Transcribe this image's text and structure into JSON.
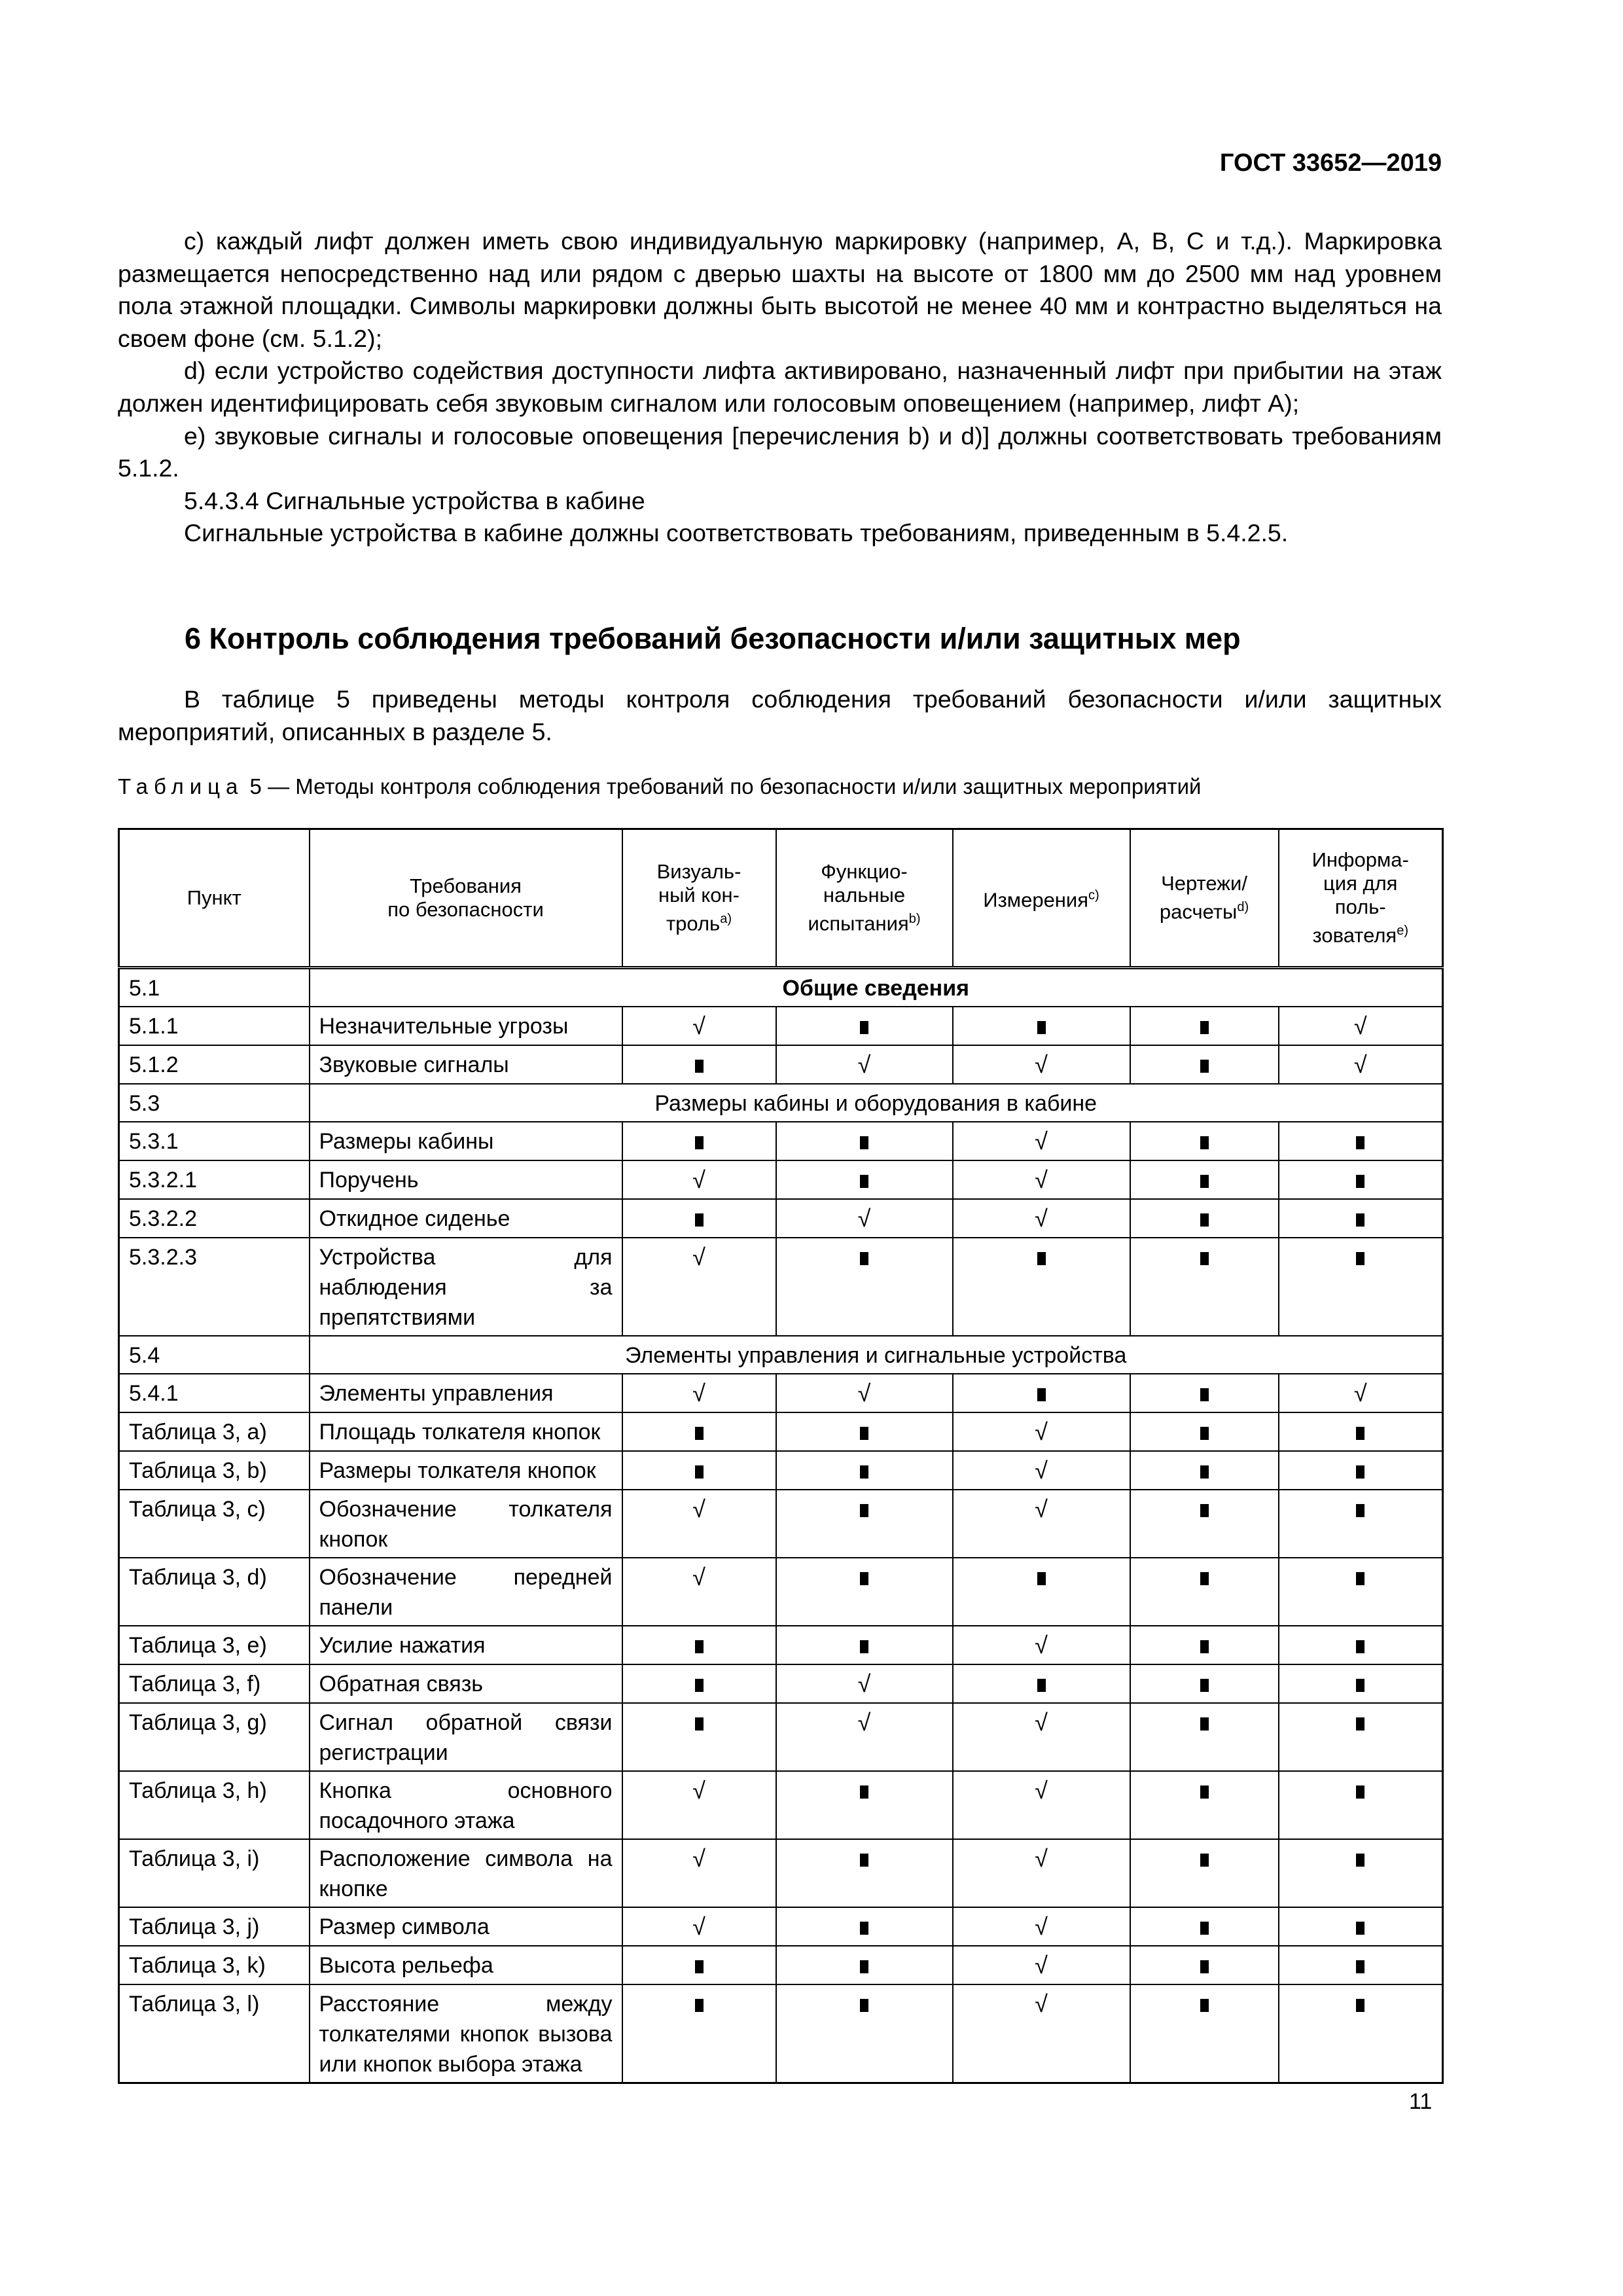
{
  "header": {
    "doc_id": "ГОСТ 33652—2019"
  },
  "paragraphs": [
    "c) каждый лифт должен иметь свою индивидуальную маркировку (например, А, В, С и т.д.). Маркировка размещается непосредственно над или рядом с дверью шахты на высоте от 1800 мм до 2500 мм над уровнем пола этажной площадки. Символы маркировки должны быть высотой не менее 40 мм и контрастно выделяться на своем фоне (см. 5.1.2);",
    "d) если устройство содействия доступности лифта активировано, назначенный лифт при прибытии на этаж должен идентифицировать себя звуковым сигналом или голосовым оповещением (например, лифт А);",
    "e) звуковые сигналы и голосовые оповещения [перечисления b) и d)] должны соответствовать требованиям 5.1.2.",
    "5.4.3.4 Сигнальные устройства в кабине",
    "Сигнальные устройства в кабине должны соответствовать требованиям, приведенным в 5.4.2.5."
  ],
  "section_heading": "6 Контроль соблюдения требований безопасности и/или защитных мер",
  "intro": "В таблице 5 приведены методы контроля соблюдения требований безопасности и/или защитных мероприятий, описанных в разделе 5.",
  "caption": {
    "label": "Таблица",
    "rest": " 5 — Методы контроля соблюдения требований по безопасности и/или защитных мероприятий"
  },
  "table": {
    "headers": [
      {
        "text": "Пункт",
        "sup": ""
      },
      {
        "text": "Требования\nпо безопасности",
        "sup": ""
      },
      {
        "text": "Визуаль-\nный кон-\nтроль",
        "sup": "a)"
      },
      {
        "text": "Функцио-\nнальные\nиспытания",
        "sup": "b)"
      },
      {
        "text": "Измерения",
        "sup": "c)"
      },
      {
        "text": "Чертежи/\nрасчеты",
        "sup": "d)"
      },
      {
        "text": "Информа-\nция для\nполь-\nзователя",
        "sup": "e)"
      }
    ],
    "mark_legend": {
      "check": "√",
      "square": "■"
    },
    "rows": [
      {
        "id": "5.1",
        "section": "Общие сведения",
        "bold": true
      },
      {
        "id": "5.1.1",
        "req": "Незначительные угрозы",
        "marks": [
          "check",
          "square",
          "square",
          "square",
          "check"
        ]
      },
      {
        "id": "5.1.2",
        "req": "Звуковые сигналы",
        "marks": [
          "square",
          "check",
          "check",
          "square",
          "check"
        ]
      },
      {
        "id": "5.3",
        "section": "Размеры кабины и оборудования в кабине",
        "bold": false
      },
      {
        "id": "5.3.1",
        "req": "Размеры кабины",
        "marks": [
          "square",
          "square",
          "check",
          "square",
          "square"
        ]
      },
      {
        "id": "5.3.2.1",
        "req": "Поручень",
        "marks": [
          "check",
          "square",
          "check",
          "square",
          "square"
        ]
      },
      {
        "id": "5.3.2.2",
        "req": "Откидное сиденье",
        "marks": [
          "square",
          "check",
          "check",
          "square",
          "square"
        ]
      },
      {
        "id": "5.3.2.3",
        "req": "Устройства для наблюдения за препятствиями",
        "marks": [
          "check",
          "square",
          "square",
          "square",
          "square"
        ]
      },
      {
        "id": "5.4",
        "section": "Элементы управления и сигнальные устройства",
        "bold": false
      },
      {
        "id": "5.4.1",
        "req": "Элементы управления",
        "marks": [
          "check",
          "check",
          "square",
          "square",
          "check"
        ]
      },
      {
        "id": "Таблица 3, a)",
        "req": "Площадь толкателя кнопок",
        "marks": [
          "square",
          "square",
          "check",
          "square",
          "square"
        ]
      },
      {
        "id": "Таблица 3, b)",
        "req": "Размеры толкателя кнопок",
        "marks": [
          "square",
          "square",
          "check",
          "square",
          "square"
        ]
      },
      {
        "id": "Таблица 3, c)",
        "req": "Обозначение толкателя кнопок",
        "marks": [
          "check",
          "square",
          "check",
          "square",
          "square"
        ]
      },
      {
        "id": "Таблица 3, d)",
        "req": "Обозначение передней панели",
        "marks": [
          "check",
          "square",
          "square",
          "square",
          "square"
        ]
      },
      {
        "id": "Таблица 3, e)",
        "req": "Усилие нажатия",
        "marks": [
          "square",
          "square",
          "check",
          "square",
          "square"
        ]
      },
      {
        "id": "Таблица 3, f)",
        "req": "Обратная связь",
        "marks": [
          "square",
          "check",
          "square",
          "square",
          "square"
        ]
      },
      {
        "id": "Таблица 3, g)",
        "req": "Сигнал обратной связи регистрации",
        "marks": [
          "square",
          "check",
          "check",
          "square",
          "square"
        ]
      },
      {
        "id": "Таблица 3, h)",
        "req": "Кнопка основного посадочного этажа",
        "marks": [
          "check",
          "square",
          "check",
          "square",
          "square"
        ]
      },
      {
        "id": "Таблица 3, i)",
        "req": "Расположение символа на кнопке",
        "marks": [
          "check",
          "square",
          "check",
          "square",
          "square"
        ]
      },
      {
        "id": "Таблица 3, j)",
        "req": "Размер символа",
        "marks": [
          "check",
          "square",
          "check",
          "square",
          "square"
        ]
      },
      {
        "id": "Таблица 3, k)",
        "req": "Высота рельефа",
        "marks": [
          "square",
          "square",
          "check",
          "square",
          "square"
        ]
      },
      {
        "id": "Таблица 3, l)",
        "req": "Расстояние между толкателями кнопок вызова или кнопок выбора этажа",
        "marks": [
          "square",
          "square",
          "check",
          "square",
          "square"
        ]
      }
    ]
  },
  "page_number": "11"
}
